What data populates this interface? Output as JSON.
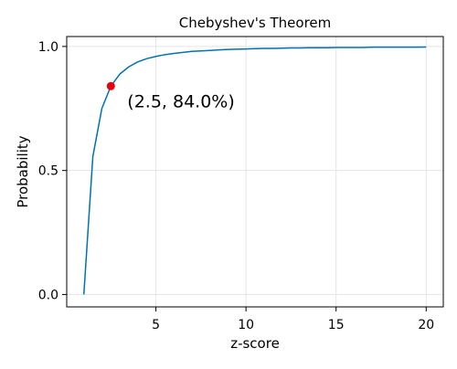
{
  "chart_data": {
    "type": "line",
    "title": "Chebyshev's Theorem",
    "xlabel": "z-score",
    "ylabel": "Probability",
    "xlim": [
      0.05,
      20.95
    ],
    "ylim": [
      -0.05,
      1.04
    ],
    "x_ticks": [
      {
        "value": 5,
        "label": "5"
      },
      {
        "value": 10,
        "label": "10"
      },
      {
        "value": 15,
        "label": "15"
      },
      {
        "value": 20,
        "label": "20"
      }
    ],
    "y_ticks": [
      {
        "value": 0.0,
        "label": "0.0"
      },
      {
        "value": 0.5,
        "label": "0.5"
      },
      {
        "value": 1.0,
        "label": "1.0"
      }
    ],
    "grid": true,
    "series": [
      {
        "color": "#0072b2",
        "x": [
          1.0,
          1.5,
          2.0,
          2.5,
          3.0,
          3.5,
          4.0,
          4.5,
          5.0,
          5.5,
          6.0,
          6.5,
          7.0,
          7.5,
          8.0,
          8.5,
          9.0,
          9.5,
          10.0,
          10.5,
          11.0,
          11.5,
          12.0,
          12.5,
          13.0,
          13.5,
          14.0,
          14.5,
          15.0,
          15.5,
          16.0,
          16.5,
          17.0,
          17.5,
          18.0,
          18.5,
          19.0,
          19.5,
          20.0
        ],
        "y": [
          0.0,
          0.556,
          0.75,
          0.84,
          0.889,
          0.918,
          0.938,
          0.951,
          0.96,
          0.967,
          0.972,
          0.976,
          0.98,
          0.982,
          0.984,
          0.986,
          0.988,
          0.989,
          0.99,
          0.991,
          0.992,
          0.992,
          0.993,
          0.994,
          0.994,
          0.995,
          0.995,
          0.995,
          0.996,
          0.996,
          0.996,
          0.996,
          0.997,
          0.997,
          0.997,
          0.997,
          0.997,
          0.997,
          0.9975
        ]
      }
    ],
    "highlight_point": {
      "x": 2.5,
      "y": 0.84,
      "color": "#e8000b",
      "label": "(2.5, 84.0%)"
    }
  }
}
